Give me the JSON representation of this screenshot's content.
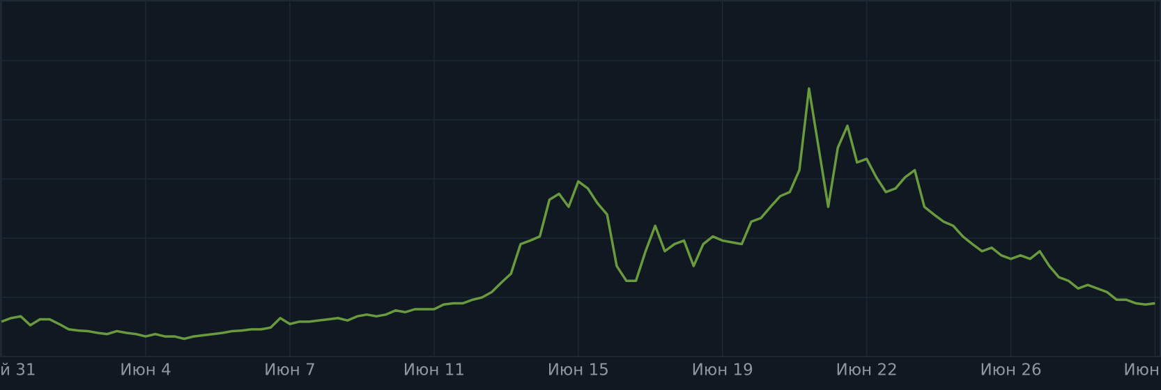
{
  "chart_data": {
    "type": "line",
    "series": [
      {
        "color": "#6a9a3e",
        "values": [
          0.59,
          0.65,
          0.68,
          0.53,
          0.63,
          0.63,
          0.55,
          0.46,
          0.44,
          0.43,
          0.4,
          0.38,
          0.43,
          0.4,
          0.38,
          0.34,
          0.38,
          0.34,
          0.34,
          0.3,
          0.34,
          0.36,
          0.38,
          0.4,
          0.43,
          0.44,
          0.46,
          0.46,
          0.49,
          0.65,
          0.55,
          0.59,
          0.59,
          0.61,
          0.63,
          0.65,
          0.61,
          0.68,
          0.71,
          0.68,
          0.71,
          0.78,
          0.75,
          0.8,
          0.8,
          0.8,
          0.88,
          0.9,
          0.9,
          0.96,
          1.0,
          1.09,
          1.25,
          1.4,
          1.9,
          1.96,
          2.03,
          2.65,
          2.75,
          2.53,
          2.96,
          2.84,
          2.59,
          2.4,
          1.53,
          1.28,
          1.28,
          1.78,
          2.21,
          1.78,
          1.9,
          1.96,
          1.53,
          1.9,
          2.03,
          1.96,
          1.93,
          1.9,
          2.28,
          2.34,
          2.53,
          2.71,
          2.78,
          3.15,
          4.53,
          3.53,
          2.53,
          3.53,
          3.9,
          3.28,
          3.34,
          3.03,
          2.78,
          2.84,
          3.03,
          3.15,
          2.53,
          2.4,
          2.28,
          2.21,
          2.03,
          1.9,
          1.78,
          1.84,
          1.71,
          1.65,
          1.71,
          1.65,
          1.78,
          1.53,
          1.34,
          1.28,
          1.15,
          1.21,
          1.15,
          1.09,
          0.96,
          0.96,
          0.9,
          0.88,
          0.9
        ]
      }
    ],
    "xlim": [
      0,
      120
    ],
    "xticks": [
      {
        "value": 0,
        "label": "й 31"
      },
      {
        "value": 15,
        "label": "Июн 4"
      },
      {
        "value": 30,
        "label": "Июн 7"
      },
      {
        "value": 45,
        "label": "Июн 11"
      },
      {
        "value": 60,
        "label": "Июн 15"
      },
      {
        "value": 75,
        "label": "Июн 19"
      },
      {
        "value": 90,
        "label": "Июн 22"
      },
      {
        "value": 105,
        "label": "Июн 26"
      },
      {
        "value": 120,
        "label": "Июн"
      }
    ],
    "ylim": [
      0,
      6
    ]
  }
}
